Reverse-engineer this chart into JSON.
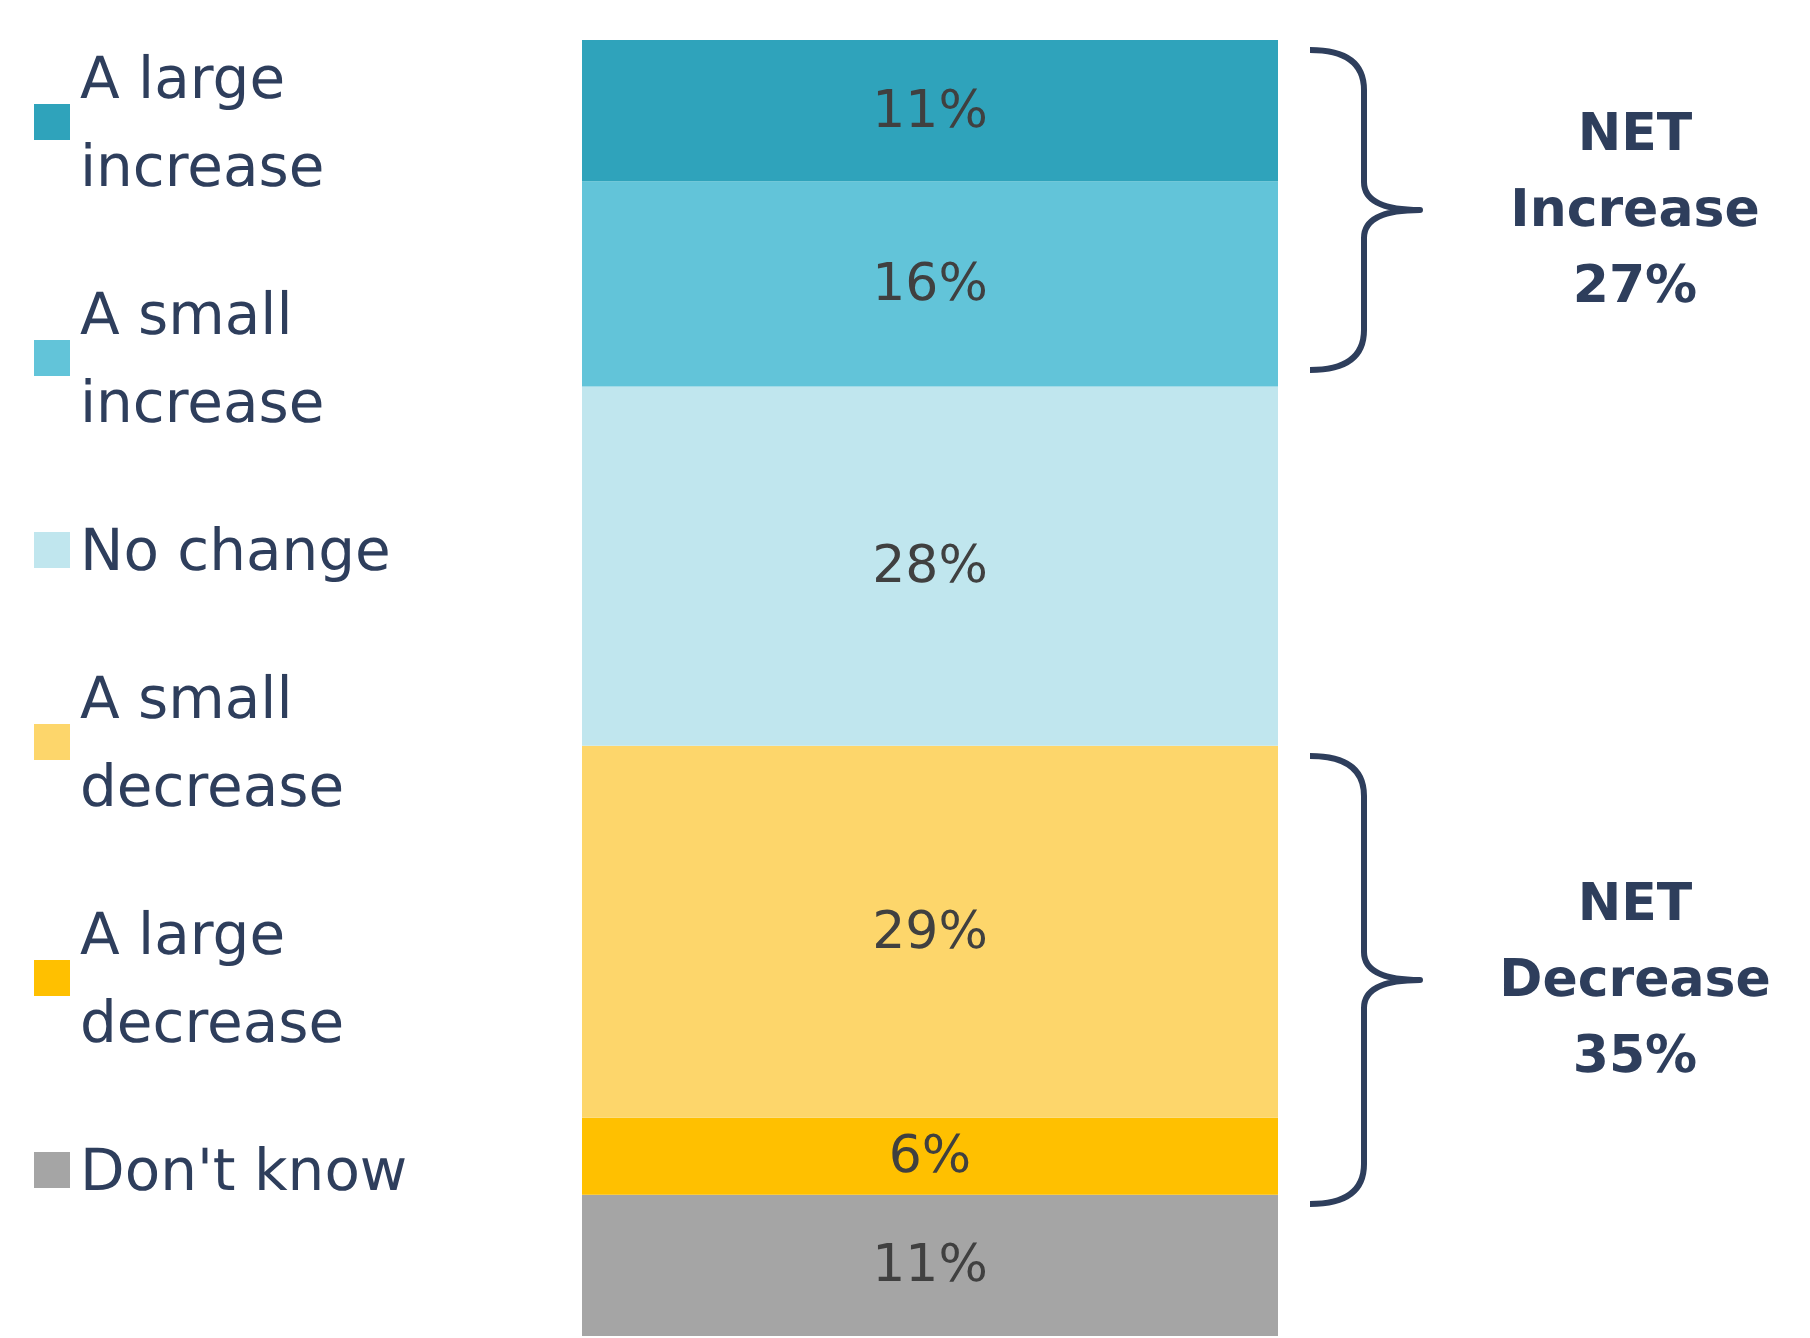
{
  "chart_data": {
    "type": "bar",
    "stacked": true,
    "categories": [
      null
    ],
    "legend": "left",
    "annotations": [
      "NET Increase 27%",
      "NET Decrease 35%"
    ],
    "series": [
      {
        "name": "Don't know",
        "color": "#a5a5a5",
        "values": [
          11
        ],
        "value_labels": [
          "11%"
        ]
      },
      {
        "name": "A large decrease",
        "color": "#ffc000",
        "values": [
          6
        ],
        "value_labels": [
          "6%"
        ]
      },
      {
        "name": "A small decrease",
        "color": "#fdd66b",
        "values": [
          29
        ],
        "value_labels": [
          "29%"
        ]
      },
      {
        "name": "No change",
        "color": "#c0e6ee",
        "values": [
          28
        ],
        "value_labels": [
          "28%"
        ]
      },
      {
        "name": "A small increase",
        "color": "#62c4d9",
        "values": [
          16
        ],
        "value_labels": [
          "16%"
        ]
      },
      {
        "name": "A large increase",
        "color": "#2fa3bb",
        "values": [
          11
        ],
        "value_labels": [
          "11%"
        ]
      }
    ]
  }
}
